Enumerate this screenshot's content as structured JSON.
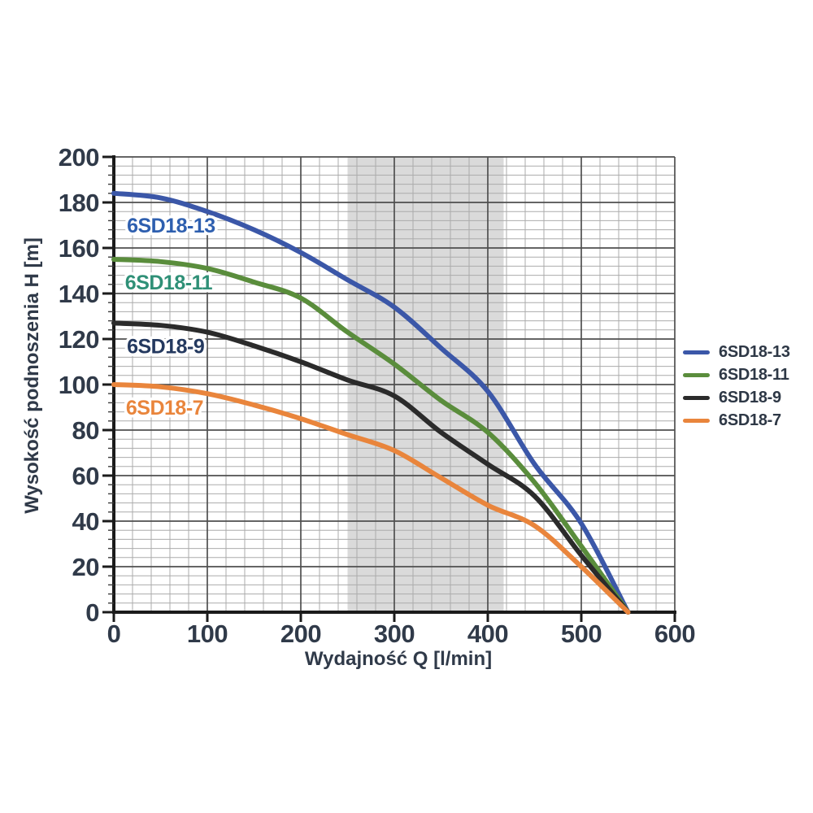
{
  "text_color": "#303a49",
  "chart_data": {
    "type": "line",
    "title": "",
    "xlabel": "Wydajność Q [l/min]",
    "ylabel": "Wysokość podnoszenia H [m]",
    "xlim": [
      0,
      600
    ],
    "ylim": [
      0,
      200
    ],
    "x_ticks": [
      0,
      100,
      200,
      300,
      400,
      500,
      600
    ],
    "y_ticks": [
      0,
      20,
      40,
      60,
      80,
      100,
      120,
      140,
      160,
      180,
      200
    ],
    "x_minor_step": 20,
    "y_minor_step": 4,
    "grid": "major+minor",
    "highlight_band": {
      "x_start": 250,
      "x_end": 417,
      "color": "#dadada"
    },
    "x": [
      0,
      50,
      100,
      150,
      200,
      250,
      300,
      350,
      400,
      450,
      500,
      550
    ],
    "series": [
      {
        "name": "6SD18-13",
        "color": "#3b57a8",
        "label_color": "#2e5faf",
        "values": [
          184,
          182,
          176,
          168,
          158,
          146,
          134,
          116,
          97,
          65,
          39,
          0
        ],
        "label": {
          "text": "6SD18-13",
          "x": 14,
          "y": 170
        }
      },
      {
        "name": "6SD18-11",
        "color": "#5a8d3c",
        "label_color": "#2f9077",
        "values": [
          155,
          154,
          151,
          145,
          138,
          123,
          109,
          93,
          79,
          57,
          29,
          0
        ],
        "label": {
          "text": "6SD18-11",
          "x": 12,
          "y": 145
        }
      },
      {
        "name": "6SD18-9",
        "color": "#2b2b2b",
        "label_color": "#24395f",
        "values": [
          127,
          126,
          123,
          117,
          110,
          102,
          95,
          79,
          65,
          51,
          25,
          0
        ],
        "label": {
          "text": "6SD18-9",
          "x": 14,
          "y": 117
        }
      },
      {
        "name": "6SD18-7",
        "color": "#e9853c",
        "label_color": "#e9853c",
        "values": [
          100,
          99,
          96,
          91,
          85,
          78,
          71,
          59,
          47,
          38,
          20,
          0
        ],
        "label": {
          "text": "6SD18-7",
          "x": 13,
          "y": 90
        }
      }
    ],
    "legend": {
      "position": "right-center",
      "entries": [
        "6SD18-13",
        "6SD18-11",
        "6SD18-9",
        "6SD18-7"
      ]
    }
  }
}
